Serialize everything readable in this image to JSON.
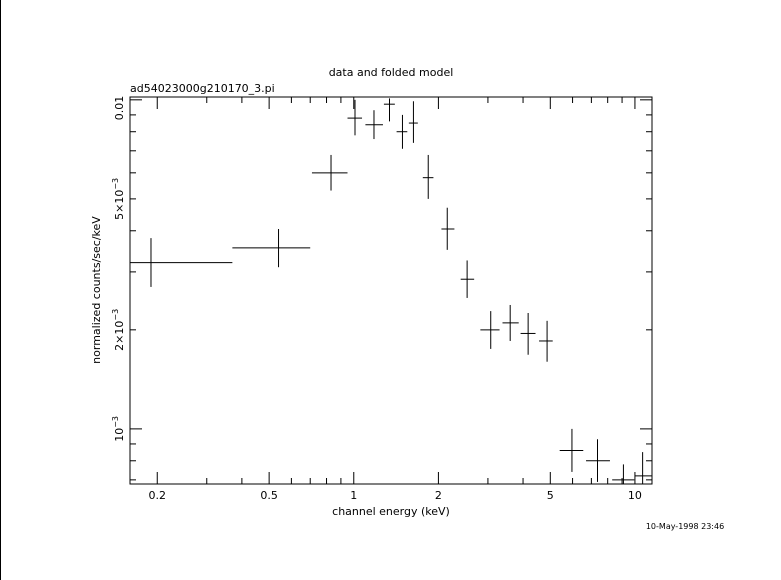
{
  "chart_data": {
    "type": "scatter",
    "title": "data and folded model",
    "subtitle": "ad54023000g210170_3.pi",
    "xlabel": "channel energy (keV)",
    "ylabel": "normalized counts/sec/keV",
    "x_scale": "log",
    "y_scale": "log",
    "xlim": [
      0.16,
      11.5
    ],
    "ylim": [
      0.00068,
      0.0102
    ],
    "x_tick_labels": [
      {
        "value": 0.2,
        "label": "0.2"
      },
      {
        "value": 0.5,
        "label": "0.5"
      },
      {
        "value": 1,
        "label": "1"
      },
      {
        "value": 2,
        "label": "2"
      },
      {
        "value": 5,
        "label": "5"
      },
      {
        "value": 10,
        "label": "10"
      }
    ],
    "y_tick_labels": [
      {
        "value": 0.001,
        "mantissa": "10",
        "exponent": "−3"
      },
      {
        "value": 0.002,
        "mantissa": "2×10",
        "exponent": "−3"
      },
      {
        "value": 0.005,
        "mantissa": "5×10",
        "exponent": "−3"
      },
      {
        "value": 0.01,
        "mantissa": "0.01",
        "exponent": ""
      }
    ],
    "points": [
      {
        "x": 0.19,
        "xlo": 0.16,
        "xhi": 0.37,
        "y": 0.0032,
        "ylo": 0.0027,
        "yhi": 0.0038
      },
      {
        "x": 0.54,
        "xlo": 0.37,
        "xhi": 0.7,
        "y": 0.00355,
        "ylo": 0.0031,
        "yhi": 0.00405
      },
      {
        "x": 0.83,
        "xlo": 0.71,
        "xhi": 0.95,
        "y": 0.006,
        "ylo": 0.0053,
        "yhi": 0.0068
      },
      {
        "x": 1.01,
        "xlo": 0.95,
        "xhi": 1.07,
        "y": 0.0088,
        "ylo": 0.0078,
        "yhi": 0.01
      },
      {
        "x": 1.18,
        "xlo": 1.1,
        "xhi": 1.27,
        "y": 0.0084,
        "ylo": 0.0076,
        "yhi": 0.0093
      },
      {
        "x": 1.34,
        "xlo": 1.28,
        "xhi": 1.4,
        "y": 0.0097,
        "ylo": 0.0086,
        "yhi": 0.0101
      },
      {
        "x": 1.49,
        "xlo": 1.42,
        "xhi": 1.55,
        "y": 0.008,
        "ylo": 0.0071,
        "yhi": 0.009
      },
      {
        "x": 1.63,
        "xlo": 1.57,
        "xhi": 1.69,
        "y": 0.0085,
        "ylo": 0.0074,
        "yhi": 0.0099
      },
      {
        "x": 1.84,
        "xlo": 1.76,
        "xhi": 1.92,
        "y": 0.0058,
        "ylo": 0.005,
        "yhi": 0.0068
      },
      {
        "x": 2.15,
        "xlo": 2.05,
        "xhi": 2.28,
        "y": 0.00405,
        "ylo": 0.0035,
        "yhi": 0.0047
      },
      {
        "x": 2.53,
        "xlo": 2.4,
        "xhi": 2.68,
        "y": 0.00285,
        "ylo": 0.0025,
        "yhi": 0.00325
      },
      {
        "x": 3.07,
        "xlo": 2.82,
        "xhi": 3.3,
        "y": 0.002,
        "ylo": 0.00175,
        "yhi": 0.00228
      },
      {
        "x": 3.6,
        "xlo": 3.38,
        "xhi": 3.86,
        "y": 0.0021,
        "ylo": 0.00185,
        "yhi": 0.00238
      },
      {
        "x": 4.17,
        "xlo": 3.92,
        "xhi": 4.43,
        "y": 0.00195,
        "ylo": 0.00168,
        "yhi": 0.00225
      },
      {
        "x": 4.87,
        "xlo": 4.56,
        "xhi": 5.1,
        "y": 0.00185,
        "ylo": 0.0016,
        "yhi": 0.00213
      },
      {
        "x": 5.97,
        "xlo": 5.4,
        "xhi": 6.55,
        "y": 0.00086,
        "ylo": 0.00074,
        "yhi": 0.001
      },
      {
        "x": 7.36,
        "xlo": 6.7,
        "xhi": 8.15,
        "y": 0.0008,
        "ylo": 0.00069,
        "yhi": 0.00093
      },
      {
        "x": 9.1,
        "xlo": 8.3,
        "xhi": 9.95,
        "y": 0.0007,
        "ylo": 0.00068,
        "yhi": 0.00078
      },
      {
        "x": 10.65,
        "xlo": 10.0,
        "xhi": 11.45,
        "y": 0.00072,
        "ylo": 0.00068,
        "yhi": 0.00085
      }
    ]
  },
  "timestamp": "10-May-1998 23:46"
}
